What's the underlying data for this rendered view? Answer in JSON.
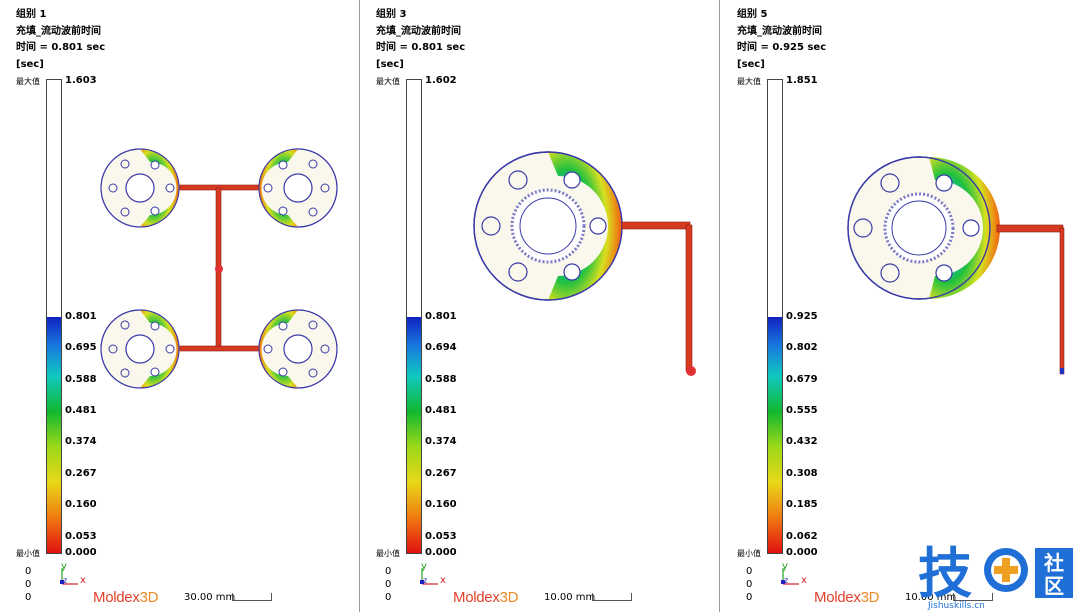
{
  "panels": [
    {
      "group": "组别 1",
      "result": "充填_流动波前时间",
      "time": "时间 = 0.801 sec",
      "unit": "[sec]",
      "max_label": "最大值",
      "max_value": "1.603",
      "min_label": "最小值",
      "min_value": "0.000",
      "ticks": [
        "0.801",
        "0.695",
        "0.588",
        "0.481",
        "0.374",
        "0.267",
        "0.160",
        "0.053"
      ],
      "fill_fraction": 0.5,
      "axis_values": [
        "0",
        "0",
        "0"
      ],
      "axis_labels": {
        "y": "y",
        "z": "z",
        "x": "x"
      },
      "logo": {
        "main": "Moldex",
        "suffix": "3D"
      },
      "scale_length": "30.00 mm"
    },
    {
      "group": "组别 3",
      "result": "充填_流动波前时间",
      "time": "时间 = 0.801 sec",
      "unit": "[sec]",
      "max_label": "最大值",
      "max_value": "1.602",
      "min_label": "最小值",
      "min_value": "0.000",
      "ticks": [
        "0.801",
        "0.694",
        "0.588",
        "0.481",
        "0.374",
        "0.267",
        "0.160",
        "0.053"
      ],
      "fill_fraction": 0.5,
      "axis_values": [
        "0",
        "0",
        "0"
      ],
      "axis_labels": {
        "y": "y",
        "z": "z",
        "x": "x"
      },
      "logo": {
        "main": "Moldex",
        "suffix": "3D"
      },
      "scale_length": "10.00 mm"
    },
    {
      "group": "组别 5",
      "result": "充填_流动波前时间",
      "time": "时间 = 0.925 sec",
      "unit": "[sec]",
      "max_label": "最大值",
      "max_value": "1.851",
      "min_label": "最小值",
      "min_value": "0.000",
      "ticks": [
        "0.925",
        "0.802",
        "0.679",
        "0.555",
        "0.432",
        "0.308",
        "0.185",
        "0.062"
      ],
      "fill_fraction": 0.5,
      "axis_values": [
        "0",
        "0",
        "0"
      ],
      "axis_labels": {
        "y": "y",
        "z": "z",
        "x": "x"
      },
      "logo": {
        "main": "Moldex",
        "suffix": "3D"
      },
      "scale_length": "10.00 mm"
    }
  ],
  "watermark": {
    "main": "技",
    "side_top": "社",
    "side_bottom": "区",
    "url": "Jishuskills.cn"
  },
  "colors": {
    "accent": "#e0422b",
    "runner": "#d63a20",
    "outline": "#3a3aa8",
    "watermark": "#1f6fd6",
    "plus": "#f0a020"
  }
}
